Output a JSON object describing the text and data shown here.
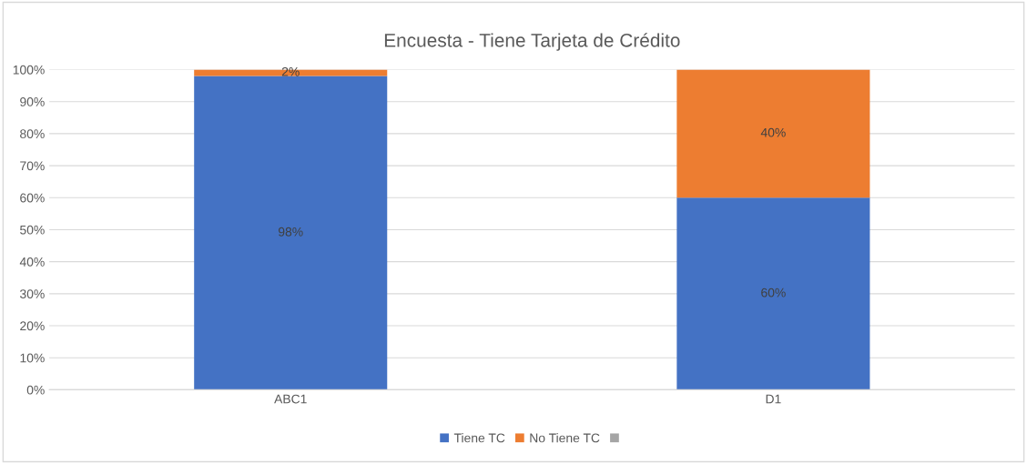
{
  "chart_data": {
    "type": "bar",
    "title": "Encuesta - Tiene Tarjeta de Crédito",
    "categories": [
      "ABC1",
      "D1"
    ],
    "stacked": true,
    "series": [
      {
        "name": "Tiene TC",
        "color": "#4472c4",
        "values": [
          98,
          60
        ],
        "value_labels": [
          "98%",
          "60%"
        ]
      },
      {
        "name": "No Tiene TC",
        "color": "#ed7d31",
        "values": [
          2,
          40
        ],
        "value_labels": [
          "2%",
          "40%"
        ]
      },
      {
        "color": "#a5a5a5",
        "values": [
          null,
          null
        ]
      }
    ],
    "ylim": [
      0,
      100
    ],
    "yticks": [
      {
        "value": 0,
        "label": "0%"
      },
      {
        "value": 10,
        "label": "10%"
      },
      {
        "value": 20,
        "label": "20%"
      },
      {
        "value": 30,
        "label": "30%"
      },
      {
        "value": 40,
        "label": "40%"
      },
      {
        "value": 50,
        "label": "50%"
      },
      {
        "value": 60,
        "label": "60%"
      },
      {
        "value": 70,
        "label": "70%"
      },
      {
        "value": 80,
        "label": "80%"
      },
      {
        "value": 90,
        "label": "90%"
      },
      {
        "value": 100,
        "label": "100%"
      }
    ],
    "grid": "y",
    "legend": "bottom"
  }
}
